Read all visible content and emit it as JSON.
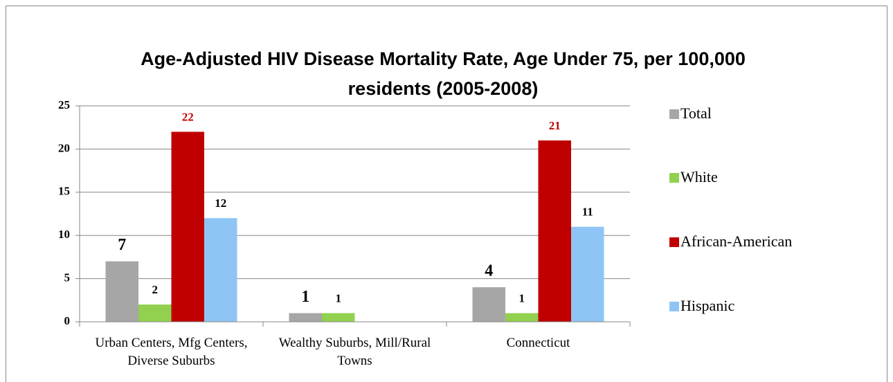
{
  "chart_data": {
    "type": "bar",
    "title": "Age-Adjusted HIV Disease Mortality Rate, Age Under 75, per 100,000 residents (2005-2008)",
    "categories": [
      "Urban Centers, Mfg Centers, Diverse Suburbs",
      "Wealthy Suburbs, Mill/Rural Towns",
      "Connecticut"
    ],
    "series": [
      {
        "name": "Total",
        "color": "#a6a6a6",
        "values": [
          7,
          1,
          4
        ]
      },
      {
        "name": "White",
        "color": "#92d050",
        "values": [
          2,
          1,
          1
        ]
      },
      {
        "name": "African-American",
        "color": "#c00000",
        "values": [
          22,
          null,
          21
        ]
      },
      {
        "name": "Hispanic",
        "color": "#8ec5f5",
        "values": [
          12,
          null,
          11
        ]
      }
    ],
    "ylim": [
      0,
      25
    ],
    "yticks": [
      0,
      5,
      10,
      15,
      20,
      25
    ],
    "grid": true,
    "legend": "right"
  }
}
